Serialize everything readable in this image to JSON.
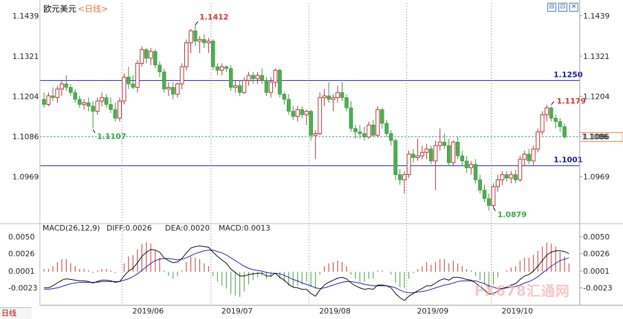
{
  "header": {
    "symbol": "欧元美元",
    "period": "<日线>",
    "buttons": [
      "⊟",
      "⊡",
      "✕"
    ]
  },
  "chart_data": {
    "type": "candlestick",
    "y_ticks": [
      "1.1439",
      "1.1321",
      "1.1204",
      "1.1086",
      "1.0969"
    ],
    "ylim": [
      1.084,
      1.1475
    ],
    "months": [
      "2019/06",
      "2019/07",
      "2019/08",
      "2019/09",
      "2019/10"
    ],
    "horizontal_lines": [
      {
        "value": 1.125,
        "label": "1.1250",
        "color": "#1a1aa8"
      },
      {
        "value": 1.1001,
        "label": "1.1001",
        "color": "#1a1aa8"
      }
    ],
    "current_price": {
      "value": 1.1086,
      "label": "1.1086",
      "color": "#e8743b"
    },
    "annotations": [
      {
        "label": "1.1412",
        "value": 1.1412,
        "color": "#d43333"
      },
      {
        "label": "1.1107",
        "value": 1.1107,
        "color": "#3aa345"
      },
      {
        "label": "1.1179",
        "value": 1.1179,
        "color": "#d43333"
      },
      {
        "label": "1.0879",
        "value": 1.0879,
        "color": "#3aa345"
      }
    ],
    "candles": [
      [
        1.1195,
        1.1215,
        1.117,
        1.118
      ],
      [
        1.118,
        1.1215,
        1.1175,
        1.1205
      ],
      [
        1.1205,
        1.123,
        1.119,
        1.12
      ],
      [
        1.12,
        1.1235,
        1.1185,
        1.1225
      ],
      [
        1.1225,
        1.125,
        1.1205,
        1.124
      ],
      [
        1.124,
        1.1265,
        1.122,
        1.123
      ],
      [
        1.123,
        1.124,
        1.1205,
        1.1215
      ],
      [
        1.1215,
        1.1225,
        1.1185,
        1.1195
      ],
      [
        1.1195,
        1.1205,
        1.117,
        1.118
      ],
      [
        1.118,
        1.1195,
        1.1165,
        1.1185
      ],
      [
        1.1185,
        1.12,
        1.116,
        1.1175
      ],
      [
        1.1175,
        1.119,
        1.111,
        1.116
      ],
      [
        1.116,
        1.12,
        1.115,
        1.119
      ],
      [
        1.119,
        1.1215,
        1.1175,
        1.12
      ],
      [
        1.12,
        1.121,
        1.117,
        1.118
      ],
      [
        1.118,
        1.12,
        1.1155,
        1.1165
      ],
      [
        1.1165,
        1.1185,
        1.113,
        1.114
      ],
      [
        1.114,
        1.12,
        1.113,
        1.119
      ],
      [
        1.119,
        1.127,
        1.118,
        1.126
      ],
      [
        1.126,
        1.129,
        1.1225,
        1.124
      ],
      [
        1.124,
        1.1265,
        1.1225,
        1.123
      ],
      [
        1.123,
        1.131,
        1.1215,
        1.13
      ],
      [
        1.13,
        1.135,
        1.129,
        1.134
      ],
      [
        1.134,
        1.1345,
        1.13,
        1.1315
      ],
      [
        1.1315,
        1.1345,
        1.1295,
        1.1335
      ],
      [
        1.1335,
        1.134,
        1.1285,
        1.1295
      ],
      [
        1.1295,
        1.1305,
        1.126,
        1.1275
      ],
      [
        1.1275,
        1.1285,
        1.1215,
        1.1225
      ],
      [
        1.1225,
        1.1245,
        1.1205,
        1.123
      ],
      [
        1.123,
        1.1245,
        1.1195,
        1.121
      ],
      [
        1.121,
        1.1245,
        1.12,
        1.124
      ],
      [
        1.124,
        1.13,
        1.1225,
        1.129
      ],
      [
        1.129,
        1.137,
        1.128,
        1.136
      ],
      [
        1.136,
        1.14,
        1.133,
        1.1395
      ],
      [
        1.1395,
        1.1412,
        1.135,
        1.1365
      ],
      [
        1.1365,
        1.138,
        1.133,
        1.137
      ],
      [
        1.137,
        1.1385,
        1.1345,
        1.136
      ],
      [
        1.136,
        1.1375,
        1.133,
        1.1365
      ],
      [
        1.1365,
        1.137,
        1.128,
        1.129
      ],
      [
        1.129,
        1.13,
        1.1265,
        1.128
      ],
      [
        1.128,
        1.13,
        1.1265,
        1.129
      ],
      [
        1.129,
        1.1295,
        1.1275,
        1.1285
      ],
      [
        1.1285,
        1.1295,
        1.122,
        1.123
      ],
      [
        1.123,
        1.125,
        1.1215,
        1.1235
      ],
      [
        1.1235,
        1.125,
        1.1205,
        1.1215
      ],
      [
        1.1215,
        1.126,
        1.121,
        1.125
      ],
      [
        1.125,
        1.1275,
        1.1235,
        1.1265
      ],
      [
        1.1265,
        1.1275,
        1.124,
        1.1255
      ],
      [
        1.1255,
        1.1275,
        1.124,
        1.1265
      ],
      [
        1.1265,
        1.1285,
        1.124,
        1.125
      ],
      [
        1.125,
        1.126,
        1.1205,
        1.1215
      ],
      [
        1.1215,
        1.126,
        1.12,
        1.1245
      ],
      [
        1.1245,
        1.1285,
        1.123,
        1.128
      ],
      [
        1.128,
        1.1285,
        1.12,
        1.121
      ],
      [
        1.121,
        1.1215,
        1.118,
        1.1195
      ],
      [
        1.1195,
        1.121,
        1.115,
        1.116
      ],
      [
        1.116,
        1.1175,
        1.1135,
        1.1145
      ],
      [
        1.1145,
        1.1175,
        1.113,
        1.1165
      ],
      [
        1.1165,
        1.1175,
        1.114,
        1.115
      ],
      [
        1.115,
        1.1165,
        1.112,
        1.116
      ],
      [
        1.116,
        1.1165,
        1.1075,
        1.109
      ],
      [
        1.109,
        1.1105,
        1.102,
        1.1095
      ],
      [
        1.1095,
        1.1215,
        1.109,
        1.12
      ],
      [
        1.12,
        1.1225,
        1.1175,
        1.1205
      ],
      [
        1.1205,
        1.1245,
        1.1185,
        1.1195
      ],
      [
        1.1195,
        1.121,
        1.116,
        1.12
      ],
      [
        1.12,
        1.1235,
        1.1185,
        1.1215
      ],
      [
        1.1215,
        1.1245,
        1.119,
        1.12
      ],
      [
        1.12,
        1.121,
        1.116,
        1.117
      ],
      [
        1.117,
        1.119,
        1.11,
        1.111
      ],
      [
        1.111,
        1.112,
        1.108,
        1.11
      ],
      [
        1.11,
        1.112,
        1.108,
        1.1095
      ],
      [
        1.1095,
        1.1115,
        1.1075,
        1.1085
      ],
      [
        1.1085,
        1.113,
        1.108,
        1.112
      ],
      [
        1.112,
        1.1135,
        1.1085,
        1.109
      ],
      [
        1.109,
        1.1175,
        1.1085,
        1.1165
      ],
      [
        1.1165,
        1.117,
        1.111,
        1.1125
      ],
      [
        1.1125,
        1.1135,
        1.1085,
        1.1095
      ],
      [
        1.1095,
        1.1105,
        1.106,
        1.1075
      ],
      [
        1.1075,
        1.108,
        1.096,
        1.0975
      ],
      [
        1.0975,
        1.099,
        1.0945,
        1.096
      ],
      [
        1.096,
        1.0985,
        1.092,
        1.0975
      ],
      [
        1.0975,
        1.1045,
        1.0965,
        1.1035
      ],
      [
        1.1035,
        1.105,
        1.101,
        1.1025
      ],
      [
        1.1025,
        1.108,
        1.1015,
        1.103
      ],
      [
        1.103,
        1.106,
        1.102,
        1.104
      ],
      [
        1.104,
        1.1065,
        1.102,
        1.105
      ],
      [
        1.105,
        1.106,
        1.1005,
        1.1015
      ],
      [
        1.1015,
        1.1075,
        1.093,
        1.106
      ],
      [
        1.106,
        1.111,
        1.1045,
        1.107
      ],
      [
        1.107,
        1.1095,
        1.105,
        1.106
      ],
      [
        1.106,
        1.108,
        1.1,
        1.101
      ],
      [
        1.101,
        1.1075,
        1.1,
        1.107
      ],
      [
        1.107,
        1.1085,
        1.102,
        1.103
      ],
      [
        1.103,
        1.1045,
        1.1,
        1.1015
      ],
      [
        1.1015,
        1.103,
        1.098,
        1.0995
      ],
      [
        1.0995,
        1.1015,
        1.0975,
        1.1005
      ],
      [
        1.1005,
        1.102,
        1.095,
        1.096
      ],
      [
        1.096,
        1.0975,
        1.092,
        1.093
      ],
      [
        1.093,
        1.0945,
        1.0895,
        1.0905
      ],
      [
        1.0905,
        1.092,
        1.087,
        1.0885
      ],
      [
        1.0885,
        1.095,
        1.0879,
        1.094
      ],
      [
        1.094,
        1.0975,
        1.0925,
        1.096
      ],
      [
        1.096,
        1.0985,
        1.0945,
        1.0975
      ],
      [
        1.0975,
        1.0985,
        1.0955,
        1.0965
      ],
      [
        1.0965,
        1.0985,
        1.095,
        1.0975
      ],
      [
        1.0975,
        1.099,
        1.095,
        1.096
      ],
      [
        1.096,
        1.103,
        1.0955,
        1.102
      ],
      [
        1.102,
        1.1045,
        1.1,
        1.1035
      ],
      [
        1.1035,
        1.105,
        1.1005,
        1.1015
      ],
      [
        1.1015,
        1.106,
        1.1,
        1.105
      ],
      [
        1.105,
        1.111,
        1.104,
        1.11
      ],
      [
        1.11,
        1.116,
        1.109,
        1.115
      ],
      [
        1.115,
        1.1179,
        1.113,
        1.117
      ],
      [
        1.117,
        1.1175,
        1.113,
        1.114
      ],
      [
        1.114,
        1.115,
        1.111,
        1.113
      ],
      [
        1.113,
        1.114,
        1.11,
        1.1115
      ],
      [
        1.1115,
        1.1125,
        1.108,
        1.1085
      ]
    ],
    "macd": {
      "label_prefix": "MACD(26,12,9)",
      "diff_label": "DIFF:0.0026",
      "dea_label": "DEA:0.0020",
      "macd_label": "MACD:0.0013",
      "y_ticks": [
        "0.0050",
        "0.0026",
        "0.0001",
        "-0.0023"
      ],
      "ylim": [
        -0.0043,
        0.0062
      ],
      "diff": [
        -0.0023,
        -0.0023,
        -0.002,
        -0.0016,
        -0.0012,
        -0.001,
        -0.0011,
        -0.0012,
        -0.0013,
        -0.0013,
        -0.0014,
        -0.0016,
        -0.0014,
        -0.0012,
        -0.0012,
        -0.0013,
        -0.0015,
        -0.0014,
        -0.0006,
        0.0001,
        0.0005,
        0.0013,
        0.0022,
        0.0028,
        0.0032,
        0.0031,
        0.0028,
        0.002,
        0.0016,
        0.0013,
        0.0014,
        0.0019,
        0.0027,
        0.0034,
        0.0036,
        0.0037,
        0.0036,
        0.0035,
        0.0028,
        0.0022,
        0.0017,
        0.0012,
        0.0004,
        -0.0001,
        -0.0006,
        -0.0006,
        -0.0004,
        -0.0003,
        -0.0002,
        -0.0002,
        -0.0006,
        -0.0006,
        -0.0002,
        -0.0008,
        -0.0012,
        -0.0018,
        -0.0022,
        -0.0023,
        -0.0025,
        -0.0025,
        -0.0031,
        -0.0035,
        -0.0026,
        -0.0019,
        -0.0015,
        -0.0012,
        -0.0009,
        -0.0008,
        -0.001,
        -0.0016,
        -0.002,
        -0.0023,
        -0.0025,
        -0.0024,
        -0.0025,
        -0.0019,
        -0.0019,
        -0.002,
        -0.0023,
        -0.0031,
        -0.0037,
        -0.0041,
        -0.0035,
        -0.0031,
        -0.0027,
        -0.0024,
        -0.002,
        -0.002,
        -0.0016,
        -0.0012,
        -0.001,
        -0.0012,
        -0.0008,
        -0.0008,
        -0.0009,
        -0.0011,
        -0.0012,
        -0.0016,
        -0.0021,
        -0.0026,
        -0.0032,
        -0.0031,
        -0.0028,
        -0.0024,
        -0.0022,
        -0.0019,
        -0.0017,
        -0.0011,
        -0.0006,
        -0.0004,
        0.0001,
        0.0008,
        0.0016,
        0.0024,
        0.0028,
        0.003,
        0.003,
        0.0029,
        0.0026
      ],
      "dea": [
        -0.0025,
        -0.0025,
        -0.0024,
        -0.0023,
        -0.0021,
        -0.0019,
        -0.0017,
        -0.0016,
        -0.0015,
        -0.0015,
        -0.0015,
        -0.0015,
        -0.0015,
        -0.0014,
        -0.0014,
        -0.0014,
        -0.0014,
        -0.0014,
        -0.0012,
        -0.001,
        -0.0007,
        -0.0003,
        0.0002,
        0.0007,
        0.0012,
        0.0016,
        0.0018,
        0.0019,
        0.0019,
        0.0018,
        0.0017,
        0.0018,
        0.002,
        0.0023,
        0.0026,
        0.0028,
        0.003,
        0.0031,
        0.0031,
        0.0029,
        0.0027,
        0.0024,
        0.002,
        0.0016,
        0.0012,
        0.0008,
        0.0005,
        0.0003,
        0.0002,
        0.0001,
        -0.0001,
        -0.0002,
        -0.0002,
        -0.0003,
        -0.0005,
        -0.0008,
        -0.0011,
        -0.0013,
        -0.0016,
        -0.0018,
        -0.002,
        -0.0023,
        -0.0024,
        -0.0023,
        -0.0021,
        -0.0019,
        -0.0017,
        -0.0015,
        -0.0014,
        -0.0014,
        -0.0015,
        -0.0016,
        -0.0018,
        -0.0019,
        -0.002,
        -0.002,
        -0.002,
        -0.002,
        -0.0021,
        -0.0023,
        -0.0026,
        -0.0029,
        -0.003,
        -0.003,
        -0.0029,
        -0.0028,
        -0.0027,
        -0.0025,
        -0.0023,
        -0.0021,
        -0.0019,
        -0.0018,
        -0.0016,
        -0.0014,
        -0.0013,
        -0.0013,
        -0.0013,
        -0.0013,
        -0.0015,
        -0.0017,
        -0.002,
        -0.0022,
        -0.0024,
        -0.0024,
        -0.0023,
        -0.0022,
        -0.0021,
        -0.0019,
        -0.0016,
        -0.0014,
        -0.0011,
        -0.0007,
        -0.0002,
        0.0003,
        0.0008,
        0.0012,
        0.0016,
        0.0018,
        0.002
      ]
    }
  },
  "watermark": {
    "text": "FX678汇通网"
  },
  "footer_tab": {
    "label": "日线"
  }
}
